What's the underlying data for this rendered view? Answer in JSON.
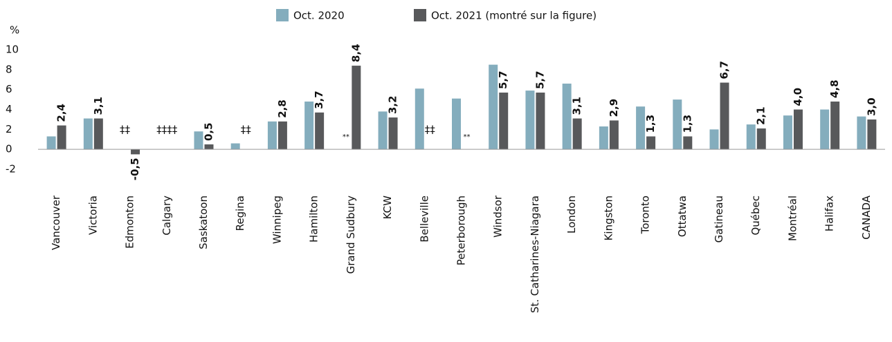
{
  "chart_data": {
    "type": "bar",
    "y_label": "%",
    "categories": [
      "Vancouver",
      "Victoria",
      "Edmonton",
      "Calgary",
      "Saskatoon",
      "Regina",
      "Winnipeg",
      "Hamilton",
      "Grand Sudbury",
      "KCW",
      "Belleville",
      "Peterborough",
      "Windsor",
      "St. Catharines-Niagara",
      "London",
      "Kingston",
      "Toronto",
      "Ottatwa",
      "Gatineau",
      "Québec",
      "Montréal",
      "Halifax",
      "CANADA"
    ],
    "series": [
      {
        "name": "Oct. 2020",
        "color": "#84adbd",
        "values": [
          1.3,
          3.1,
          null,
          null,
          1.8,
          0.6,
          2.8,
          4.8,
          null,
          3.8,
          6.1,
          5.1,
          8.5,
          5.9,
          6.6,
          2.3,
          4.3,
          5.0,
          2.0,
          2.5,
          3.4,
          4.0,
          3.3
        ],
        "value_labels": [
          null,
          null,
          "‡‡",
          "‡‡",
          null,
          null,
          null,
          null,
          "**",
          null,
          null,
          null,
          null,
          null,
          null,
          null,
          null,
          null,
          null,
          null,
          null,
          null,
          null
        ]
      },
      {
        "name": "Oct. 2021 (montré sur la figure)",
        "color": "#58595b",
        "values": [
          2.4,
          3.1,
          -0.5,
          null,
          0.5,
          null,
          2.8,
          3.7,
          8.4,
          3.2,
          null,
          null,
          5.7,
          5.7,
          3.1,
          2.9,
          1.3,
          1.3,
          6.7,
          2.1,
          4.0,
          4.8,
          3.0
        ],
        "value_labels": [
          "2,4",
          "3,1",
          "-0,5",
          "‡‡",
          "0,5",
          "‡‡",
          "2,8",
          "3,7",
          "8,4",
          "3,2",
          "‡‡",
          "**",
          "5,7",
          "5,7",
          "3,1",
          "2,9",
          "1,3",
          "1,3",
          "6,7",
          "2,1",
          "4,0",
          "4,8",
          "3,0"
        ]
      }
    ],
    "ylim": [
      -2,
      10
    ],
    "yticks": [
      -2,
      0,
      2,
      4,
      6,
      8,
      10
    ],
    "grid": false
  }
}
